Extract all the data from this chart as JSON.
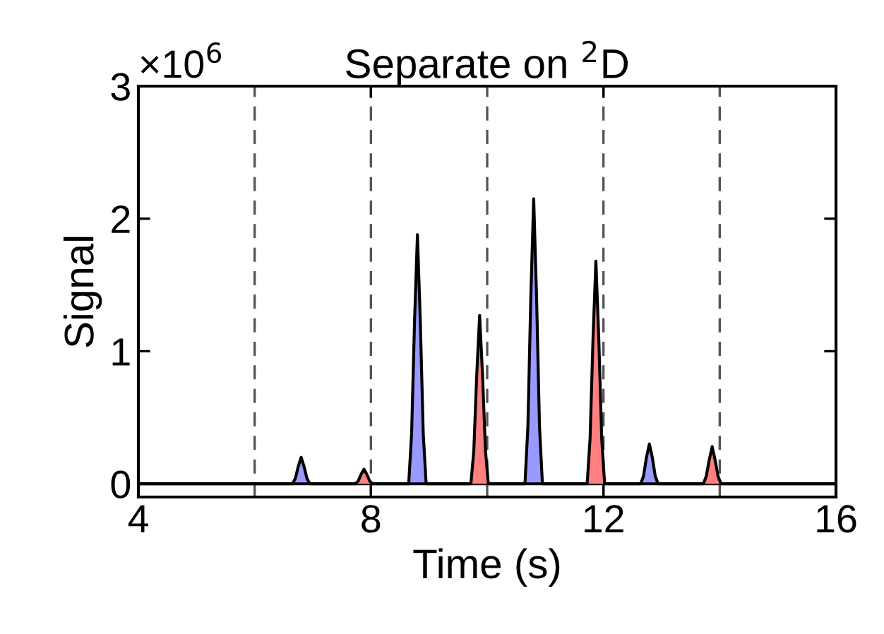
{
  "chart_data": {
    "type": "area",
    "title": "Separate on $^{2}$D",
    "xlabel": "Time (s)",
    "ylabel": "Signal",
    "annotations": [
      "×10$^{6}$"
    ],
    "series": [
      {
        "color": "#9999ff",
        "x": [
          4,
          6.65,
          6.7,
          6.75,
          6.8,
          6.85,
          6.9,
          6.95,
          8.65,
          8.7,
          8.75,
          8.8,
          8.85,
          8.9,
          8.95,
          10.65,
          10.7,
          10.75,
          10.8,
          10.85,
          10.9,
          10.95,
          12.64,
          12.69,
          12.74,
          12.79,
          12.84,
          12.89,
          12.94,
          16
        ],
        "values": [
          0,
          0,
          0.04,
          0.13,
          0.2,
          0.13,
          0.04,
          0,
          0,
          0.38,
          1.22,
          1.88,
          1.22,
          0.38,
          0,
          0,
          0.43,
          1.4,
          2.15,
          1.4,
          0.43,
          0,
          0,
          0.06,
          0.2,
          0.3,
          0.2,
          0.06,
          0,
          0
        ]
      },
      {
        "color": "#ff8080",
        "x": [
          4,
          7.73,
          7.78,
          7.83,
          7.88,
          7.93,
          7.98,
          8.03,
          9.72,
          9.77,
          9.82,
          9.87,
          9.92,
          9.97,
          10.02,
          11.72,
          11.77,
          11.82,
          11.87,
          11.92,
          11.97,
          12.02,
          13.72,
          13.77,
          13.82,
          13.87,
          13.92,
          13.97,
          14.02,
          16
        ],
        "values": [
          0,
          0,
          0.02,
          0.07,
          0.11,
          0.07,
          0.02,
          0,
          0,
          0.25,
          0.82,
          1.27,
          0.82,
          0.25,
          0,
          0,
          0.34,
          1.09,
          1.68,
          1.09,
          0.34,
          0,
          0,
          0.06,
          0.18,
          0.28,
          0.18,
          0.06,
          0,
          0
        ]
      }
    ],
    "xlim": [
      4,
      16
    ],
    "xticks": [
      4,
      8,
      12,
      16
    ],
    "ylim": [
      -0.1,
      3
    ],
    "yticks": [
      0,
      1,
      2,
      3
    ],
    "ref_lines": [
      {
        "axis": "x",
        "value": 6,
        "color": "#555555",
        "line_style": "dashed"
      },
      {
        "axis": "x",
        "value": 8,
        "color": "#555555",
        "line_style": "dashed"
      },
      {
        "axis": "x",
        "value": 10,
        "color": "#555555",
        "line_style": "dashed"
      },
      {
        "axis": "x",
        "value": 12,
        "color": "#555555",
        "line_style": "dashed"
      },
      {
        "axis": "x",
        "value": 14,
        "color": "#555555",
        "line_style": "dashed"
      }
    ],
    "grid": false,
    "legend": false
  }
}
